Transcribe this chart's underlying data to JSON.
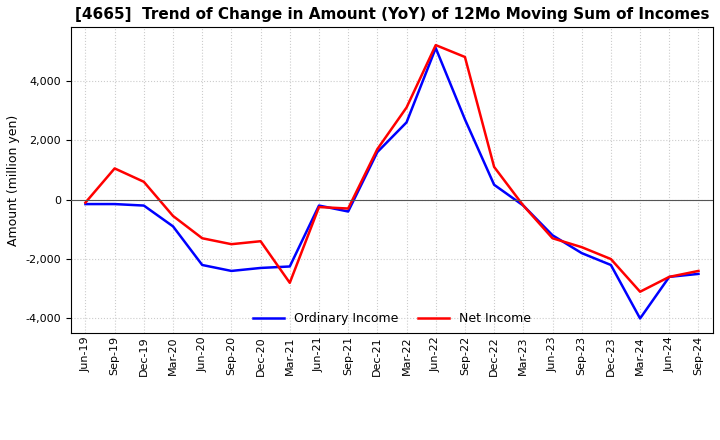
{
  "title": "[4665]  Trend of Change in Amount (YoY) of 12Mo Moving Sum of Incomes",
  "ylabel": "Amount (million yen)",
  "x_labels": [
    "Jun-19",
    "Sep-19",
    "Dec-19",
    "Mar-20",
    "Jun-20",
    "Sep-20",
    "Dec-20",
    "Mar-21",
    "Jun-21",
    "Sep-21",
    "Dec-21",
    "Mar-22",
    "Jun-22",
    "Sep-22",
    "Dec-22",
    "Mar-23",
    "Jun-23",
    "Sep-23",
    "Dec-23",
    "Mar-24",
    "Jun-24",
    "Sep-24"
  ],
  "ordinary_income": [
    -150,
    -150,
    -200,
    -900,
    -2200,
    -2400,
    -2300,
    -2250,
    -200,
    -400,
    1600,
    2600,
    5100,
    2700,
    500,
    -200,
    -1200,
    -1800,
    -2200,
    -4000,
    -2600,
    -2500
  ],
  "net_income": [
    -100,
    1050,
    600,
    -550,
    -1300,
    -1500,
    -1400,
    -2800,
    -250,
    -300,
    1700,
    3100,
    5200,
    4800,
    1100,
    -200,
    -1300,
    -1600,
    -2000,
    -3100,
    -2600,
    -2400
  ],
  "ordinary_income_color": "#0000ff",
  "net_income_color": "#ff0000",
  "background_color": "#ffffff",
  "grid_color": "#cccccc",
  "ylim": [
    -4500,
    5800
  ],
  "yticks": [
    -4000,
    -2000,
    0,
    2000,
    4000
  ],
  "title_fontsize": 11,
  "axis_label_fontsize": 9,
  "tick_fontsize": 8,
  "legend_fontsize": 9,
  "line_width": 1.8
}
